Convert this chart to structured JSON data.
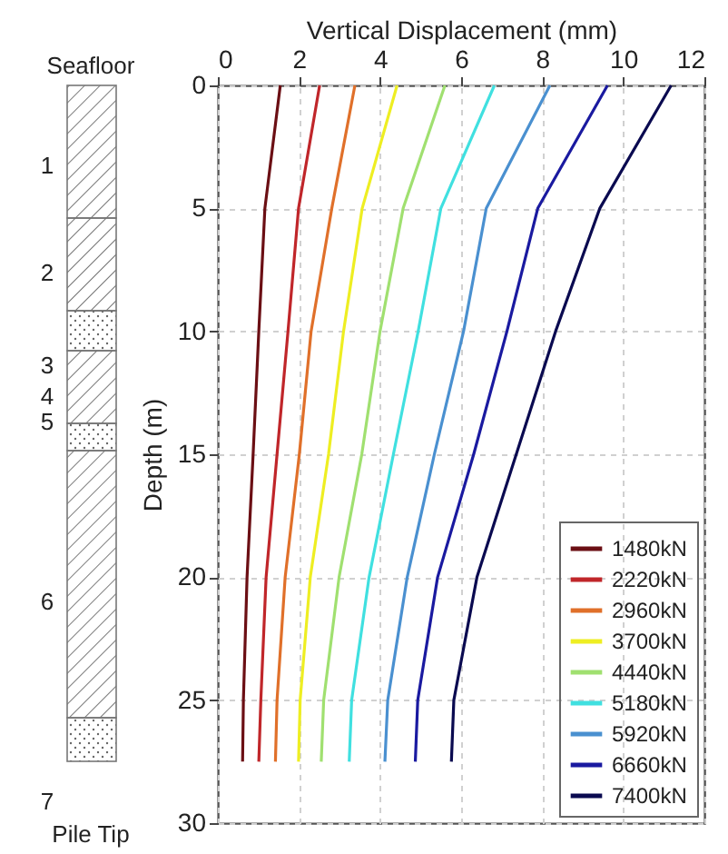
{
  "chart_data": {
    "type": "line",
    "xlabel": "Vertical Displacement (mm)",
    "ylabel": "Depth (m)",
    "xlim": [
      0,
      12
    ],
    "xticks": [
      0,
      2,
      4,
      6,
      8,
      10,
      12
    ],
    "ylim": [
      30,
      0
    ],
    "yticks": [
      0,
      5,
      10,
      15,
      20,
      25,
      30
    ],
    "grid": true,
    "legend": "bottom right",
    "line_style": "solid",
    "annotations": [
      "Seafloor",
      "1",
      "2",
      "3",
      "4",
      "5",
      "6",
      "7",
      "Pile Tip"
    ],
    "series": [
      {
        "name": "1480kN",
        "color": "#6b0f14",
        "x": [
          1.54,
          1.16,
          1.01,
          0.87,
          0.72,
          0.63,
          0.61
        ],
        "values": [
          0,
          5,
          10,
          15,
          20,
          25,
          27.5
        ]
      },
      {
        "name": "2220kN",
        "color": "#c0262a",
        "x": [
          2.51,
          1.99,
          1.73,
          1.46,
          1.19,
          1.06,
          1.01
        ],
        "values": [
          0,
          5,
          10,
          15,
          20,
          25,
          27.5
        ]
      },
      {
        "name": "2960kN",
        "color": "#e0702a",
        "x": [
          3.38,
          2.81,
          2.3,
          2.01,
          1.66,
          1.46,
          1.42
        ],
        "values": [
          0,
          5,
          10,
          15,
          20,
          25,
          27.5
        ]
      },
      {
        "name": "3700kN",
        "color": "#eeee22",
        "x": [
          4.42,
          3.56,
          3.1,
          2.73,
          2.28,
          2.03,
          1.99
        ],
        "values": [
          0,
          5,
          10,
          15,
          20,
          25,
          27.5
        ]
      },
      {
        "name": "4440kN",
        "color": "#a0e070",
        "x": [
          5.6,
          4.57,
          4.0,
          3.55,
          2.99,
          2.61,
          2.55
        ],
        "values": [
          0,
          5,
          10,
          15,
          20,
          25,
          27.5
        ]
      },
      {
        "name": "5180kN",
        "color": "#40e0e0",
        "x": [
          6.82,
          5.5,
          4.94,
          4.33,
          3.73,
          3.3,
          3.24
        ],
        "values": [
          0,
          5,
          10,
          15,
          20,
          25,
          27.5
        ]
      },
      {
        "name": "5920kN",
        "color": "#4a90d0",
        "x": [
          8.19,
          6.62,
          6.06,
          5.34,
          4.67,
          4.19,
          4.12
        ],
        "values": [
          0,
          5,
          10,
          15,
          20,
          25,
          27.5
        ]
      },
      {
        "name": "6660kN",
        "color": "#1a1aa0",
        "x": [
          9.61,
          7.89,
          7.13,
          6.31,
          5.42,
          4.93,
          4.87
        ],
        "values": [
          0,
          5,
          10,
          15,
          20,
          25,
          27.5
        ]
      },
      {
        "name": "7400kN",
        "color": "#0a0a50",
        "x": [
          11.18,
          9.42,
          8.33,
          7.36,
          6.39,
          5.82,
          5.76
        ],
        "values": [
          0,
          5,
          10,
          15,
          20,
          25,
          27.5
        ]
      }
    ]
  }
}
